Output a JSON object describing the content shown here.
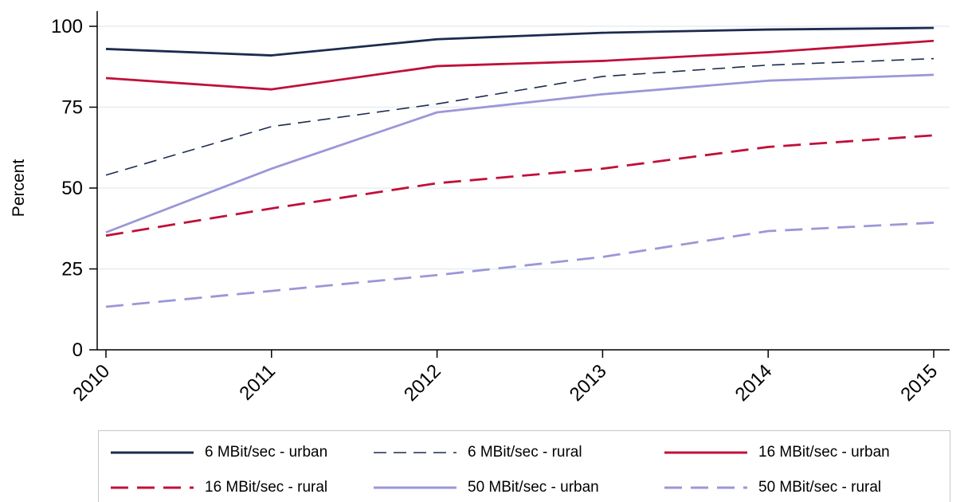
{
  "chart_data": {
    "type": "line",
    "title": "",
    "xlabel": "",
    "ylabel": "Percent",
    "x": [
      2010,
      2011,
      2012,
      2013,
      2014,
      2015
    ],
    "ylim": [
      0,
      100
    ],
    "yticks": [
      0,
      25,
      50,
      75,
      100
    ],
    "grid": "horizontal",
    "legend_position": "bottom",
    "series": [
      {
        "name": "6 MBit/sec - urban",
        "values": [
          93,
          91,
          96,
          98,
          99,
          99.5
        ],
        "color": "#1c2b4f",
        "dash": "solid"
      },
      {
        "name": "6 MBit/sec - rural",
        "values": [
          54,
          69,
          76,
          84.5,
          88,
          90
        ],
        "color": "#1c2b4f",
        "dash": "dashed"
      },
      {
        "name": "16 MBit/sec - urban",
        "values": [
          84,
          80.5,
          87.7,
          89.3,
          92,
          95.5
        ],
        "color": "#c0103a",
        "dash": "solid"
      },
      {
        "name": "16 MBit/sec - rural",
        "values": [
          35.3,
          43.7,
          51.5,
          56,
          62.7,
          66.3
        ],
        "color": "#c0103a",
        "dash": "dashed"
      },
      {
        "name": "50 MBit/sec - urban",
        "values": [
          36.3,
          56,
          73.4,
          79,
          83.2,
          85
        ],
        "color": "#9b97d8",
        "dash": "solid"
      },
      {
        "name": "50 MBit/sec - rural",
        "values": [
          13.3,
          18.2,
          23.1,
          28.7,
          36.7,
          39.3
        ],
        "color": "#9b97d8",
        "dash": "dashed"
      }
    ]
  }
}
